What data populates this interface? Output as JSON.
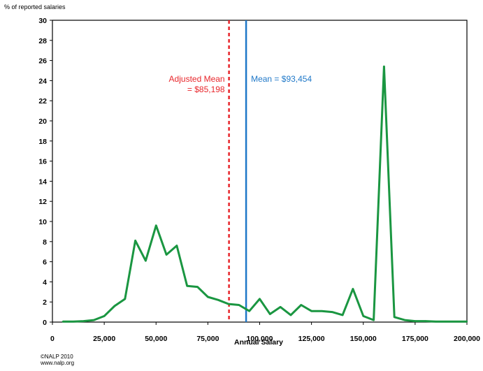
{
  "chart_data": {
    "type": "line",
    "title": "",
    "ylabel": "% of reported salaries",
    "xlabel": "Annual Salary",
    "xlim": [
      0,
      200000
    ],
    "ylim": [
      0,
      30
    ],
    "x_ticks": [
      0,
      25000,
      50000,
      75000,
      100000,
      125000,
      150000,
      175000,
      200000
    ],
    "x_tick_labels": [
      "0",
      "25,000",
      "50,000",
      "75,000",
      "100,000",
      "125,000",
      "150,000",
      "175,000",
      "200,000"
    ],
    "y_ticks": [
      0,
      2,
      4,
      6,
      8,
      10,
      12,
      14,
      16,
      18,
      20,
      22,
      24,
      26,
      28,
      30
    ],
    "y_tick_labels": [
      "0",
      "2",
      "4",
      "6",
      "8",
      "10",
      "12",
      "14",
      "16",
      "18",
      "20",
      "22",
      "24",
      "26",
      "28",
      "30"
    ],
    "grid": false,
    "series": [
      {
        "color": "#1a9641",
        "x": [
          5000,
          10000,
          15000,
          20000,
          25000,
          30000,
          35000,
          40000,
          45000,
          50000,
          55000,
          60000,
          65000,
          70000,
          75000,
          80000,
          85000,
          90000,
          95000,
          100000,
          105000,
          110000,
          115000,
          120000,
          125000,
          130000,
          135000,
          140000,
          145000,
          150000,
          155000,
          160000,
          165000,
          170000,
          175000,
          180000,
          185000,
          190000,
          195000,
          200000
        ],
        "y": [
          0.05,
          0.05,
          0.1,
          0.2,
          0.6,
          1.6,
          2.3,
          8.1,
          6.1,
          9.6,
          6.7,
          7.6,
          3.6,
          3.5,
          2.5,
          2.2,
          1.8,
          1.7,
          1.1,
          2.3,
          0.8,
          1.5,
          0.7,
          1.7,
          1.1,
          1.1,
          1.0,
          0.7,
          3.3,
          0.6,
          0.2,
          25.4,
          0.5,
          0.2,
          0.1,
          0.1,
          0.05,
          0.05,
          0.05,
          0.05
        ]
      }
    ],
    "reference_lines": [
      {
        "x": 85198,
        "style": "dashed",
        "color": "#e8262b",
        "label_lines": [
          "Adjusted Mean",
          "= $85,198"
        ]
      },
      {
        "x": 93454,
        "style": "solid",
        "color": "#1f78c8",
        "label_lines": [
          "Mean = $93,454"
        ]
      }
    ]
  },
  "credits": {
    "copyright": "©NALP 2010",
    "website": "www.nalp.org"
  }
}
